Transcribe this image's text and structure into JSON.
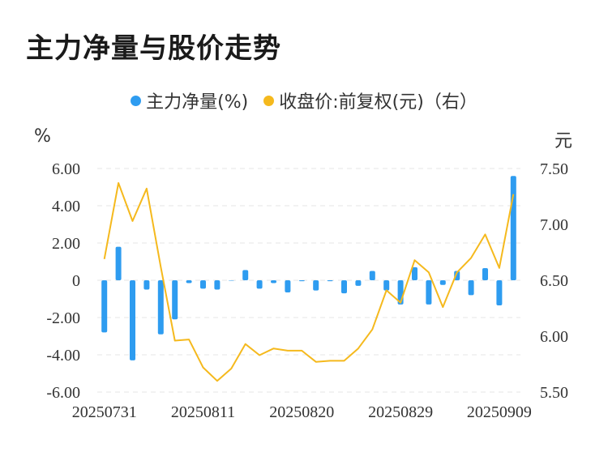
{
  "title": "主力净量与股价走势",
  "legend": {
    "net": "主力净量(%)",
    "price": "收盘价:前复权(元)（右）"
  },
  "units": {
    "left": "%",
    "right": "元"
  },
  "colors": {
    "bar": "#2e9cf0",
    "line": "#f5b91d",
    "grid": "#e5e5e5",
    "text": "#333333"
  },
  "chart_data": {
    "type": "bar+line",
    "title": "主力净量与股价走势",
    "x_tick_labels": [
      "20250731",
      "20250811",
      "20250820",
      "20250829",
      "20250909"
    ],
    "y_left": {
      "label": "%",
      "ticks": [
        "6.00",
        "4.00",
        "2.00",
        "0",
        "-2.00",
        "-4.00",
        "-6.00"
      ],
      "range": [
        -6,
        6
      ]
    },
    "y_right": {
      "label": "元",
      "ticks": [
        "7.50",
        "7.00",
        "6.50",
        "6.00",
        "5.50"
      ],
      "range": [
        5.5,
        7.5
      ]
    },
    "grid": true,
    "legend_position": "top-center",
    "series": [
      {
        "name": "主力净量(%)",
        "type": "bar",
        "axis": "left",
        "values": [
          -2.8,
          1.8,
          -4.3,
          -0.5,
          -2.9,
          -2.1,
          -0.15,
          -0.45,
          -0.5,
          0,
          0.55,
          -0.45,
          -0.15,
          -0.65,
          -0.05,
          -0.55,
          -0.05,
          -0.7,
          -0.3,
          0.5,
          -0.55,
          -1.3,
          0.7,
          -1.3,
          -0.25,
          0.5,
          -0.8,
          0.65,
          -1.35,
          5.6
        ]
      },
      {
        "name": "收盘价:前复权(元)（右）",
        "type": "line",
        "axis": "right",
        "values": [
          6.69,
          7.37,
          7.03,
          7.32,
          6.62,
          5.96,
          5.97,
          5.72,
          5.6,
          5.71,
          5.93,
          5.83,
          5.89,
          5.87,
          5.87,
          5.77,
          5.78,
          5.78,
          5.89,
          6.06,
          6.41,
          6.3,
          6.68,
          6.57,
          6.26,
          6.57,
          6.7,
          6.91,
          6.61,
          7.27
        ]
      }
    ]
  }
}
